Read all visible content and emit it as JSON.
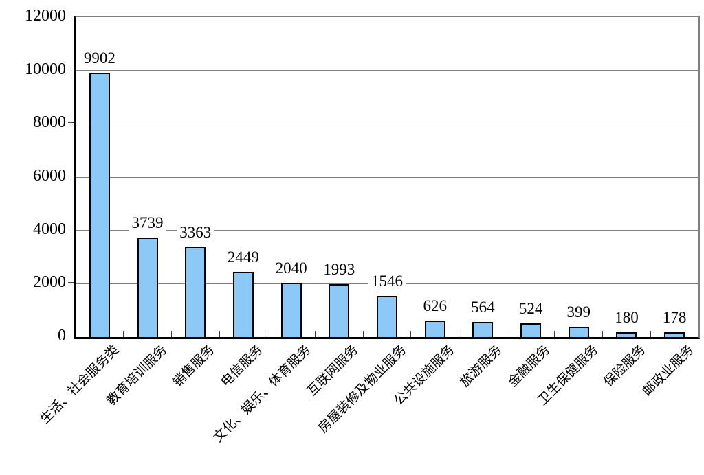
{
  "chart_data": {
    "type": "bar",
    "title": "",
    "categories": [
      "生活、社会服务类",
      "教育培训服务",
      "销售服务",
      "电信服务",
      "文化、娱乐、体育服务",
      "互联网服务",
      "房屋装修及物业服务",
      "公共设施服务",
      "旅游服务",
      "金融服务",
      "卫生保健服务",
      "保险服务",
      "邮政业服务"
    ],
    "values": [
      9902,
      3739,
      3363,
      2449,
      2040,
      1993,
      1546,
      626,
      564,
      524,
      399,
      180,
      178
    ],
    "data_labels": true,
    "xlabel": "",
    "ylabel": "",
    "ylim": [
      0,
      12000
    ],
    "yticks": [
      0,
      2000,
      4000,
      6000,
      8000,
      10000,
      12000
    ],
    "grid": "horizontal",
    "legend": "none",
    "category_label_rotation_deg": -45
  },
  "style": {
    "background": "#ffffff",
    "bar_fill": "#8dc9f6",
    "bar_border": "#000000",
    "gridline_color": "#808080",
    "plot_border_color": "#7f7f7f",
    "axis_color": "#000000",
    "tick_color": "#404040",
    "text_color": "#000000"
  }
}
